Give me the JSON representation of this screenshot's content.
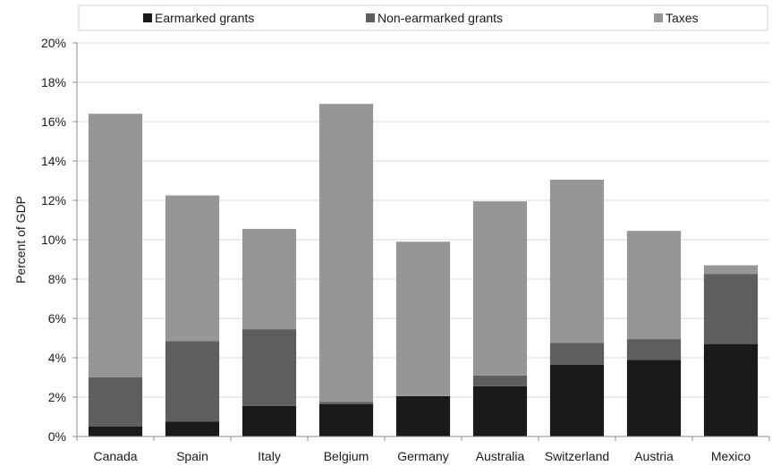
{
  "chart_data": {
    "type": "bar",
    "stacked": true,
    "title": "",
    "xlabel": "",
    "ylabel": "Percent of GDP",
    "ylim": [
      0,
      20
    ],
    "yticks": [
      0,
      2,
      4,
      6,
      8,
      10,
      12,
      14,
      16,
      18,
      20
    ],
    "ytick_labels": [
      "0%",
      "2%",
      "4%",
      "6%",
      "8%",
      "10%",
      "12%",
      "14%",
      "16%",
      "18%",
      "20%"
    ],
    "grid": true,
    "legend_position": "top",
    "categories": [
      "Canada",
      "Spain",
      "Italy",
      "Belgium",
      "Germany",
      "Australia",
      "Switzerland",
      "Austria",
      "Mexico"
    ],
    "series": [
      {
        "name": "Earmarked grants",
        "color": "#1a1a1a",
        "values": [
          0.5,
          0.75,
          1.55,
          1.65,
          2.05,
          2.55,
          3.65,
          3.9,
          4.7
        ]
      },
      {
        "name": "Non-earmarked grants",
        "color": "#5e5e5e",
        "values": [
          2.5,
          4.1,
          3.9,
          0.1,
          0.0,
          0.55,
          1.1,
          1.05,
          3.55
        ]
      },
      {
        "name": "Taxes",
        "color": "#969696",
        "values": [
          13.4,
          7.4,
          5.1,
          15.15,
          7.85,
          8.85,
          8.3,
          5.5,
          0.45
        ]
      }
    ]
  }
}
